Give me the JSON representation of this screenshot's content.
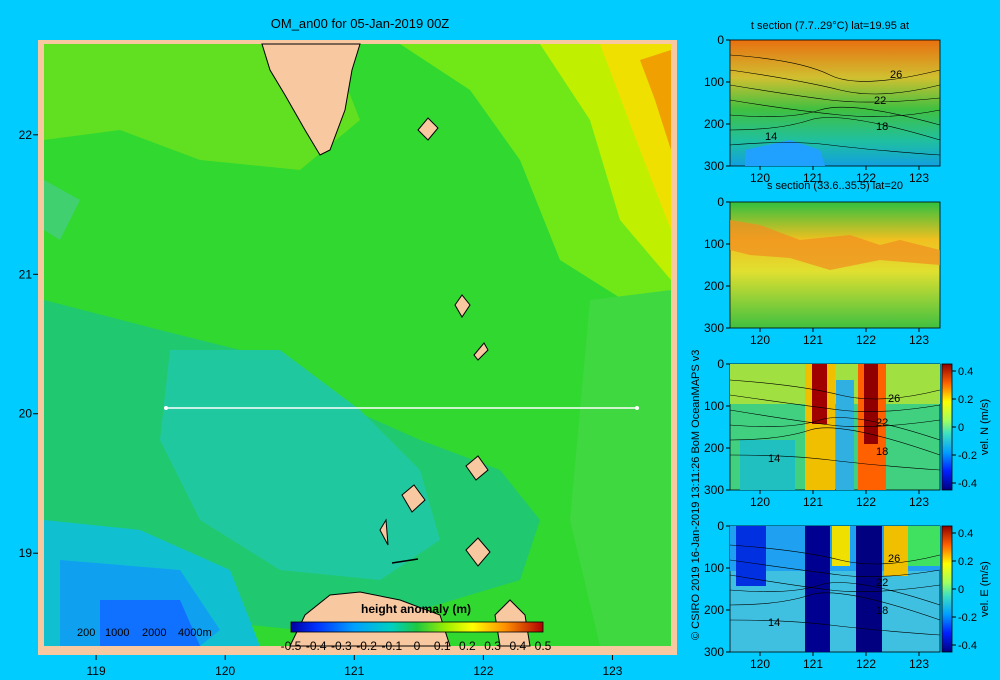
{
  "chart_data": [
    {
      "type": "heatmap",
      "title": "OM_an00 for 05-Jan-2019 00Z",
      "x_ticks": [
        "119",
        "120",
        "121",
        "122",
        "123"
      ],
      "x_tick_values": [
        119,
        120,
        121,
        122,
        123
      ],
      "y_ticks": [
        "19",
        "20",
        "21",
        "22"
      ],
      "y_tick_values": [
        19,
        20,
        21,
        22
      ],
      "xlim": [
        118.55,
        123.5
      ],
      "ylim": [
        18.27,
        22.68
      ],
      "colorbar_label": "height anomaly (m)",
      "colorbar_ticks": [
        "-0.5",
        "-0.4",
        "-0.3",
        "-0.2",
        "-0.1",
        "0",
        "0.1",
        "0.2",
        "0.3",
        "0.4",
        "0.5"
      ],
      "colorbar_range": [
        -0.5,
        0.5
      ],
      "depth_scale": [
        "200",
        "1000",
        "2000",
        "4000m"
      ],
      "section_line": {
        "lat": 20,
        "lon_start": 119.5,
        "lon_end": 123.2
      },
      "grid": false
    },
    {
      "type": "heatmap",
      "title": "t section (7.7..29°C) lat=19.95 at",
      "x_ticks": [
        "120",
        "121",
        "122",
        "123"
      ],
      "y_ticks": [
        "0",
        "100",
        "200",
        "300"
      ],
      "contour_labels": [
        "26",
        "22",
        "18",
        "14"
      ]
    },
    {
      "type": "heatmap",
      "title": "s section (33.6..35.5) lat=20",
      "x_ticks": [
        "120",
        "121",
        "122",
        "123"
      ],
      "y_ticks": [
        "0",
        "100",
        "200",
        "300"
      ]
    },
    {
      "type": "heatmap",
      "title": "",
      "x_ticks": [
        "120",
        "121",
        "122",
        "123"
      ],
      "y_ticks": [
        "0",
        "100",
        "200",
        "300"
      ],
      "contour_labels": [
        "26",
        "22",
        "18",
        "14"
      ],
      "colorbar_label": "vel. N (m/s)",
      "colorbar_ticks": [
        "0.4",
        "0.2",
        "0",
        "-0.2",
        "-0.4"
      ],
      "colorbar_range": [
        -0.45,
        0.45
      ]
    },
    {
      "type": "heatmap",
      "title": "",
      "x_ticks": [
        "120",
        "121",
        "122",
        "123"
      ],
      "y_ticks": [
        "0",
        "100",
        "200",
        "300"
      ],
      "contour_labels": [
        "26",
        "22",
        "18",
        "14"
      ],
      "colorbar_label": "vel. E (m/s)",
      "colorbar_ticks": [
        "0.4",
        "0.2",
        "0",
        "-0.2",
        "-0.4"
      ],
      "colorbar_range": [
        -0.45,
        0.45
      ]
    }
  ],
  "credit": "© CSIRO 2019   16-Jan-2019 13:11:26 BoM OceanMAPS v3",
  "colors": {
    "background": "#00ccff",
    "land": "#f8c8a0",
    "map_base": "#28d028",
    "section_line": "#ffffff"
  }
}
